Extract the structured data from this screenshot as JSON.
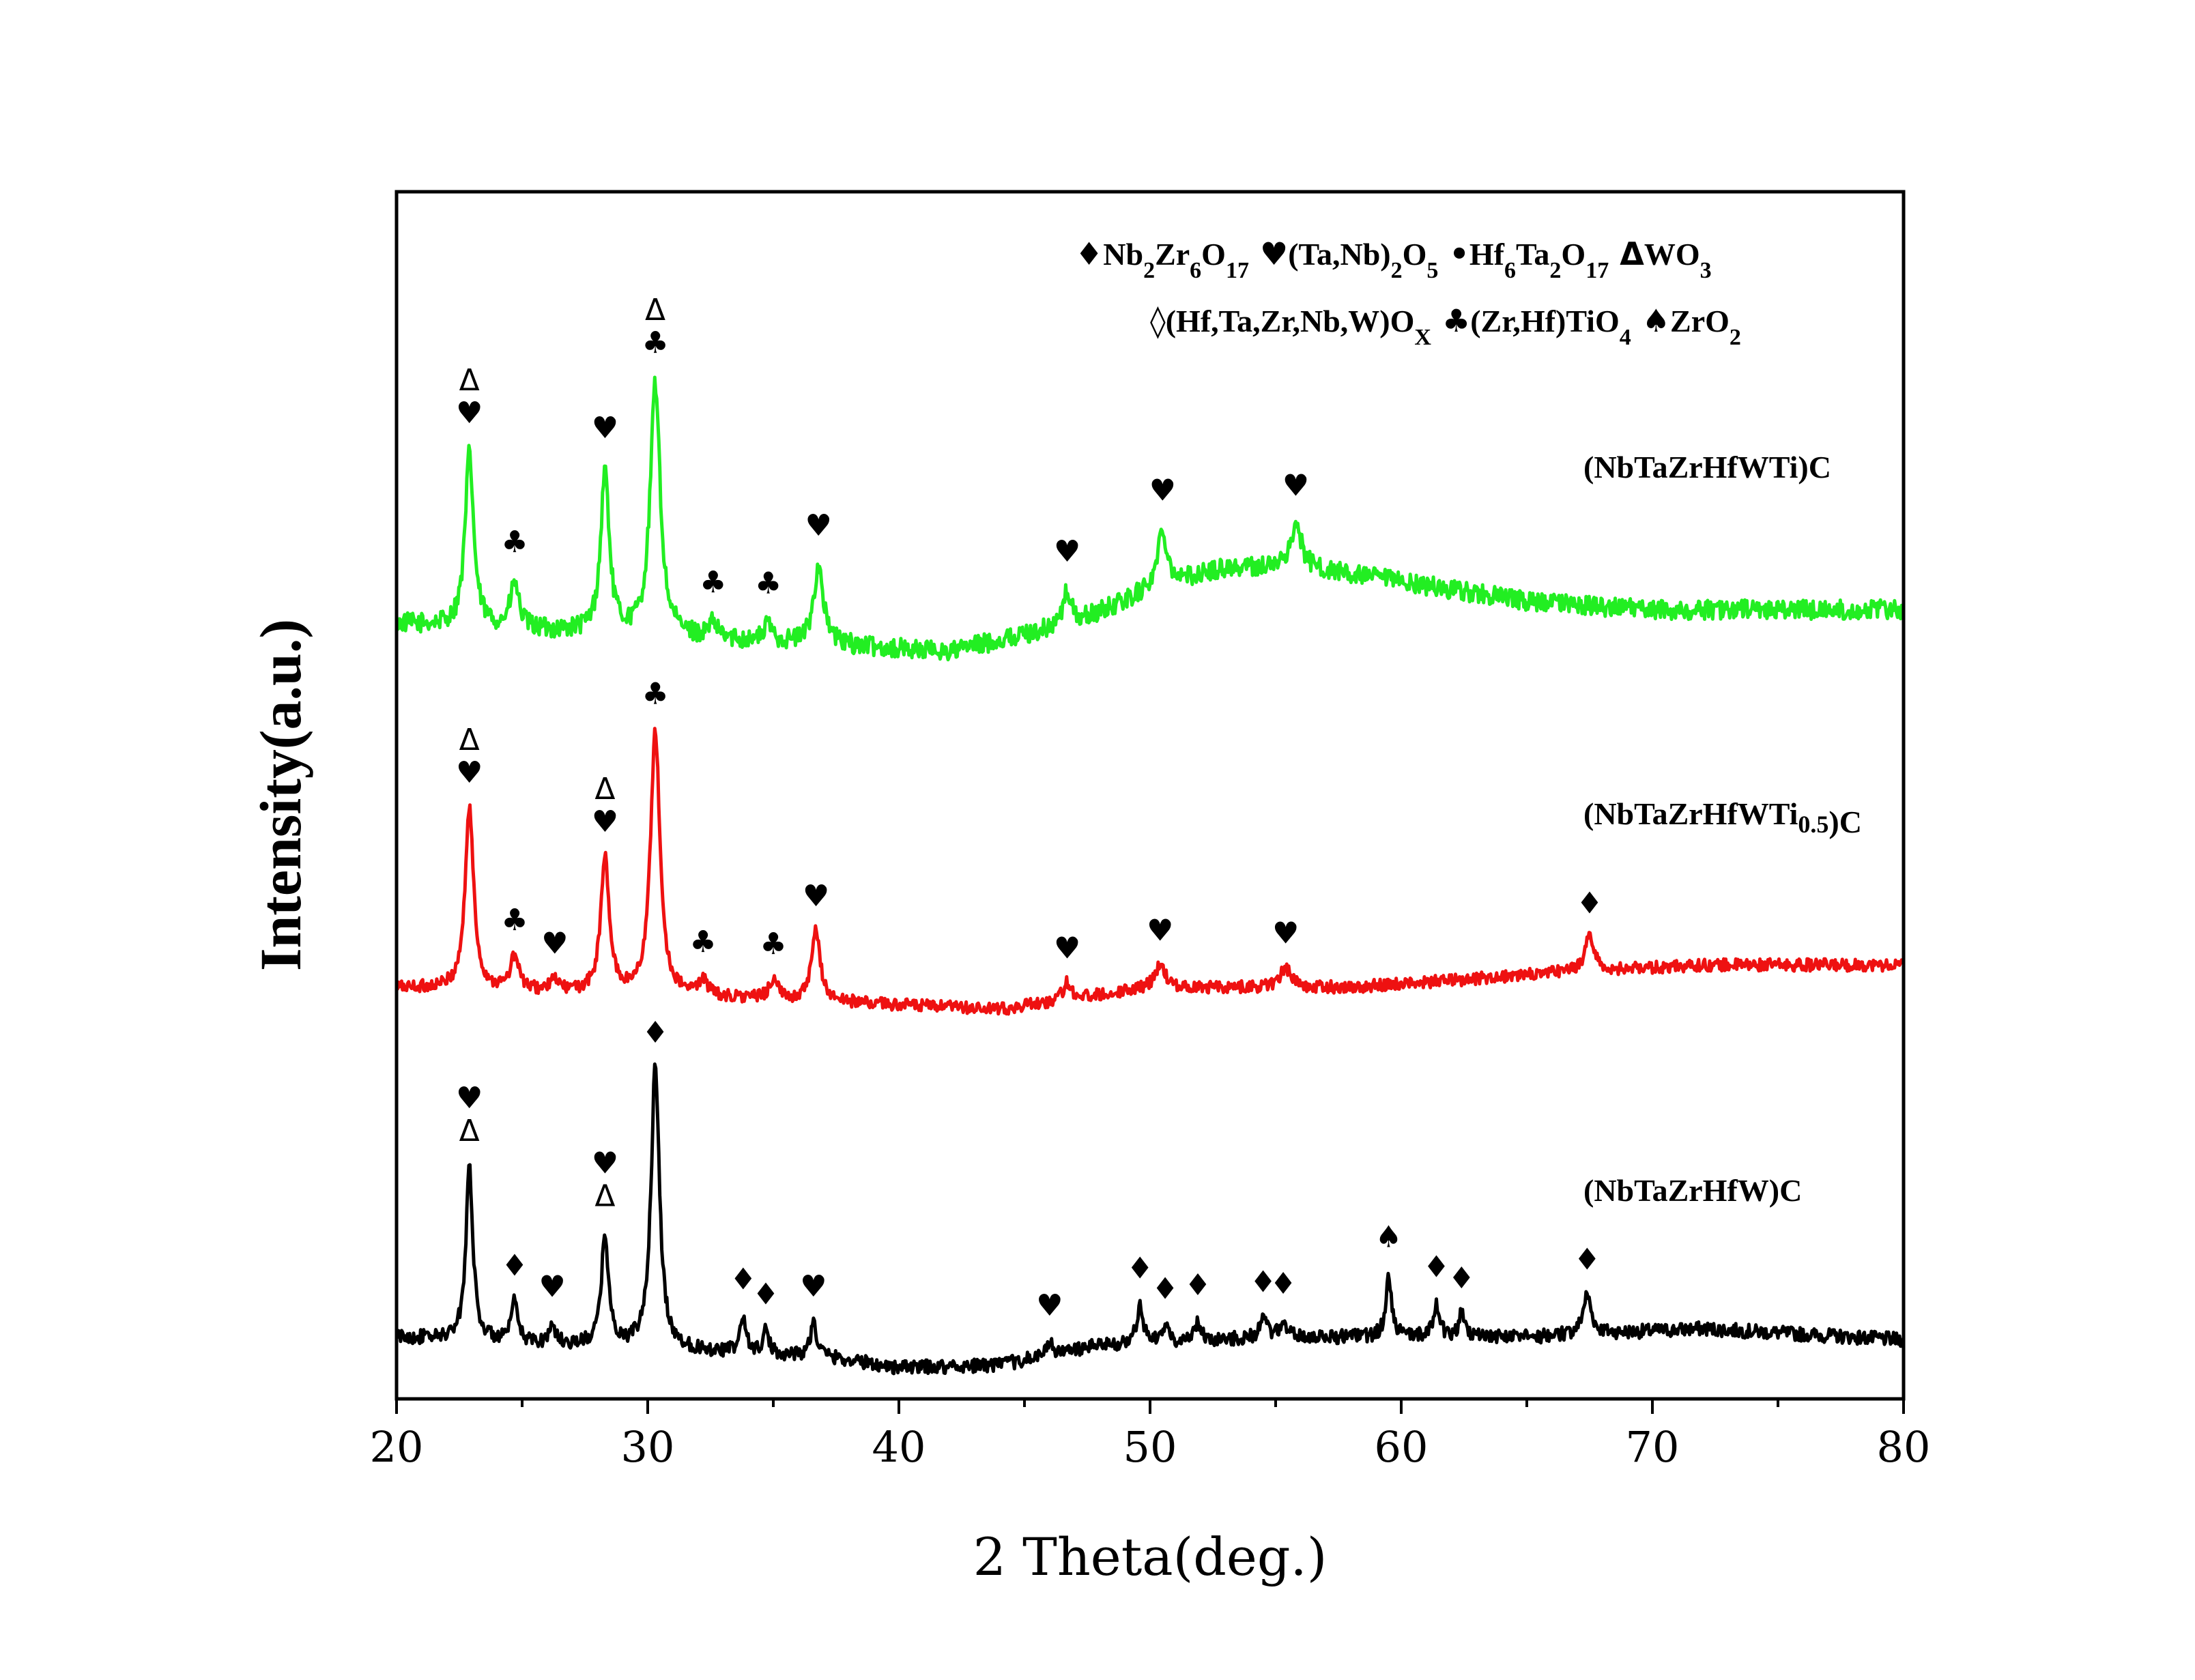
{
  "chart_data": {
    "type": "line",
    "xlabel": "2 Theta(deg.)",
    "ylabel": "Intensity(a.u.)",
    "xlim": [
      20,
      80
    ],
    "x_ticks": [
      20,
      30,
      40,
      50,
      60,
      70,
      80
    ],
    "grid": false,
    "legend": {
      "placement": "top-right",
      "rows": [
        [
          {
            "symbol": "♦",
            "name": "Nb2Zr6O17",
            "parts": [
              [
                "Nb",
                ""
              ],
              [
                "2",
                "sub"
              ],
              [
                "Zr",
                ""
              ],
              [
                "6",
                "sub"
              ],
              [
                "O",
                ""
              ],
              [
                "17",
                "sub"
              ]
            ]
          },
          {
            "symbol": "♥",
            "name": "(Ta,Nb)2O5",
            "parts": [
              [
                "(Ta,Nb)",
                ""
              ],
              [
                "2",
                "sub"
              ],
              [
                "O",
                ""
              ],
              [
                "5",
                "sub"
              ]
            ]
          },
          {
            "symbol": "•",
            "name": "Hf6Ta2O17",
            "parts": [
              [
                "Hf",
                ""
              ],
              [
                "6",
                "sub"
              ],
              [
                "Ta",
                ""
              ],
              [
                "2",
                "sub"
              ],
              [
                "O",
                ""
              ],
              [
                "17",
                "sub"
              ]
            ]
          },
          {
            "symbol": "Δ",
            "name": "WO3",
            "parts": [
              [
                "WO",
                ""
              ],
              [
                "3",
                "sub"
              ]
            ]
          }
        ],
        [
          {
            "symbol": "◊",
            "name": "(Hf,Ta,Zr,Nb,W)Ox",
            "parts": [
              [
                "(Hf,Ta,Zr,Nb,W)O",
                ""
              ],
              [
                "X",
                "sub"
              ]
            ]
          },
          {
            "symbol": "♣",
            "name": "(Zr,Hf)TiO4",
            "parts": [
              [
                "(Zr,Hf)TiO",
                ""
              ],
              [
                "4",
                "sub"
              ]
            ]
          },
          {
            "symbol": "♠",
            "name": "ZrO2",
            "parts": [
              [
                "ZrO",
                ""
              ],
              [
                "2",
                "sub"
              ]
            ]
          }
        ]
      ]
    },
    "series": [
      {
        "name": "(NbTaZrHfWTi)C",
        "label_parts": [
          [
            "(NbTaZrHfWTi)C",
            ""
          ]
        ],
        "color": "#22ee22",
        "offset": 2.6,
        "noise": 0.035,
        "baseline": [
          [
            20,
            0.0
          ],
          [
            38,
            -0.08
          ],
          [
            42,
            -0.1
          ],
          [
            47,
            0.0
          ],
          [
            50,
            0.12
          ],
          [
            53,
            0.2
          ],
          [
            56,
            0.2
          ],
          [
            60,
            0.15
          ],
          [
            65,
            0.08
          ],
          [
            70,
            0.05
          ],
          [
            80,
            0.05
          ]
        ],
        "peaks": [
          {
            "x": 22.9,
            "h": 0.62,
            "w": 0.3
          },
          {
            "x": 24.7,
            "h": 0.16,
            "w": 0.3
          },
          {
            "x": 28.3,
            "h": 0.58,
            "w": 0.3
          },
          {
            "x": 30.3,
            "h": 0.9,
            "w": 0.35
          },
          {
            "x": 32.6,
            "h": 0.05,
            "w": 0.3
          },
          {
            "x": 34.8,
            "h": 0.06,
            "w": 0.3
          },
          {
            "x": 36.8,
            "h": 0.28,
            "w": 0.35
          },
          {
            "x": 46.7,
            "h": 0.12,
            "w": 0.3
          },
          {
            "x": 50.5,
            "h": 0.2,
            "w": 0.35
          },
          {
            "x": 55.8,
            "h": 0.15,
            "w": 0.4
          }
        ],
        "markers": [
          {
            "x": 22.9,
            "stack": [
              "♥",
              "Δ"
            ]
          },
          {
            "x": 24.7,
            "stack": [
              "♣"
            ]
          },
          {
            "x": 28.3,
            "stack": [
              "♥"
            ]
          },
          {
            "x": 30.3,
            "stack": [
              "♣",
              "Δ"
            ]
          },
          {
            "x": 32.6,
            "stack": [
              "♣"
            ]
          },
          {
            "x": 34.8,
            "stack": [
              "♣"
            ]
          },
          {
            "x": 36.8,
            "stack": [
              "♥"
            ]
          },
          {
            "x": 46.7,
            "stack": [
              "♥"
            ]
          },
          {
            "x": 50.5,
            "stack": [
              "♥"
            ]
          },
          {
            "x": 55.8,
            "stack": [
              "♥"
            ]
          }
        ]
      },
      {
        "name": "(NbTaZrHfWTi0.5)C",
        "label_parts": [
          [
            "(NbTaZrHfWTi",
            ""
          ],
          [
            "0.5",
            "sub"
          ],
          [
            ")C",
            ""
          ]
        ],
        "color": "#ee1111",
        "offset": 1.3,
        "noise": 0.022,
        "baseline": [
          [
            20,
            0.0
          ],
          [
            37,
            -0.05
          ],
          [
            44,
            -0.08
          ],
          [
            50,
            0.0
          ],
          [
            58,
            0.0
          ],
          [
            66,
            0.05
          ],
          [
            72,
            0.08
          ],
          [
            80,
            0.08
          ]
        ],
        "peaks": [
          {
            "x": 22.9,
            "h": 0.65,
            "w": 0.3
          },
          {
            "x": 24.7,
            "h": 0.12,
            "w": 0.3
          },
          {
            "x": 26.3,
            "h": 0.04,
            "w": 0.3
          },
          {
            "x": 28.3,
            "h": 0.48,
            "w": 0.3
          },
          {
            "x": 30.3,
            "h": 0.95,
            "w": 0.33
          },
          {
            "x": 32.2,
            "h": 0.06,
            "w": 0.3
          },
          {
            "x": 35.0,
            "h": 0.07,
            "w": 0.3
          },
          {
            "x": 36.7,
            "h": 0.25,
            "w": 0.3
          },
          {
            "x": 46.7,
            "h": 0.06,
            "w": 0.3
          },
          {
            "x": 50.4,
            "h": 0.08,
            "w": 0.35
          },
          {
            "x": 55.4,
            "h": 0.07,
            "w": 0.4
          },
          {
            "x": 67.5,
            "h": 0.12,
            "w": 0.35
          }
        ],
        "markers": [
          {
            "x": 22.9,
            "stack": [
              "♥",
              "Δ"
            ]
          },
          {
            "x": 24.7,
            "stack": [
              "♣"
            ]
          },
          {
            "x": 26.3,
            "stack": [
              "♥"
            ]
          },
          {
            "x": 28.3,
            "stack": [
              "♥",
              "Δ"
            ]
          },
          {
            "x": 30.3,
            "stack": [
              "♣"
            ]
          },
          {
            "x": 32.2,
            "stack": [
              "♣"
            ]
          },
          {
            "x": 35.0,
            "stack": [
              "♣"
            ]
          },
          {
            "x": 36.7,
            "stack": [
              "♥"
            ]
          },
          {
            "x": 46.7,
            "stack": [
              "♥"
            ]
          },
          {
            "x": 50.4,
            "stack": [
              "♥"
            ]
          },
          {
            "x": 55.4,
            "stack": [
              "♥"
            ]
          },
          {
            "x": 67.5,
            "stack": [
              "♦"
            ]
          }
        ]
      },
      {
        "name": "(NbTaZrHfW)C",
        "label_parts": [
          [
            "(NbTaZrHfW)C",
            ""
          ]
        ],
        "color": "#000000",
        "offset": 0.0,
        "noise": 0.025,
        "baseline": [
          [
            20,
            0.05
          ],
          [
            37,
            -0.02
          ],
          [
            40,
            -0.06
          ],
          [
            44,
            -0.05
          ],
          [
            48,
            0.02
          ],
          [
            55,
            0.05
          ],
          [
            65,
            0.05
          ],
          [
            72,
            0.08
          ],
          [
            80,
            0.04
          ]
        ],
        "peaks": [
          {
            "x": 22.9,
            "h": 0.62,
            "w": 0.25
          },
          {
            "x": 24.7,
            "h": 0.14,
            "w": 0.22
          },
          {
            "x": 26.2,
            "h": 0.07,
            "w": 0.2
          },
          {
            "x": 28.3,
            "h": 0.4,
            "w": 0.25
          },
          {
            "x": 30.3,
            "h": 1.0,
            "w": 0.3
          },
          {
            "x": 33.8,
            "h": 0.13,
            "w": 0.2
          },
          {
            "x": 34.7,
            "h": 0.08,
            "w": 0.2
          },
          {
            "x": 36.6,
            "h": 0.12,
            "w": 0.22
          },
          {
            "x": 46.0,
            "h": 0.05,
            "w": 0.2
          },
          {
            "x": 49.6,
            "h": 0.14,
            "w": 0.22
          },
          {
            "x": 50.6,
            "h": 0.06,
            "w": 0.2
          },
          {
            "x": 51.9,
            "h": 0.07,
            "w": 0.2
          },
          {
            "x": 54.5,
            "h": 0.07,
            "w": 0.25
          },
          {
            "x": 55.3,
            "h": 0.06,
            "w": 0.2
          },
          {
            "x": 59.5,
            "h": 0.23,
            "w": 0.2
          },
          {
            "x": 61.4,
            "h": 0.12,
            "w": 0.22
          },
          {
            "x": 62.4,
            "h": 0.08,
            "w": 0.2
          },
          {
            "x": 67.4,
            "h": 0.14,
            "w": 0.3
          }
        ],
        "markers": [
          {
            "x": 22.9,
            "stack": [
              "Δ",
              "♥"
            ]
          },
          {
            "x": 24.7,
            "stack": [
              "♦"
            ]
          },
          {
            "x": 26.2,
            "stack": [
              "♥"
            ]
          },
          {
            "x": 28.3,
            "stack": [
              "Δ",
              "♥"
            ]
          },
          {
            "x": 30.3,
            "stack": [
              "♦"
            ]
          },
          {
            "x": 33.8,
            "stack": [
              "♦"
            ]
          },
          {
            "x": 34.7,
            "stack": [
              "♦"
            ]
          },
          {
            "x": 36.6,
            "stack": [
              "♥"
            ]
          },
          {
            "x": 46.0,
            "stack": [
              "♥"
            ]
          },
          {
            "x": 49.6,
            "stack": [
              "♦"
            ]
          },
          {
            "x": 50.6,
            "stack": [
              "♦"
            ]
          },
          {
            "x": 51.9,
            "stack": [
              "♦"
            ]
          },
          {
            "x": 54.5,
            "stack": [
              "♦"
            ]
          },
          {
            "x": 55.3,
            "stack": [
              "♦"
            ]
          },
          {
            "x": 59.5,
            "stack": [
              "♠"
            ]
          },
          {
            "x": 61.4,
            "stack": [
              "♦"
            ]
          },
          {
            "x": 62.4,
            "stack": [
              "♦"
            ]
          },
          {
            "x": 67.4,
            "stack": [
              "♦"
            ]
          }
        ]
      }
    ]
  }
}
